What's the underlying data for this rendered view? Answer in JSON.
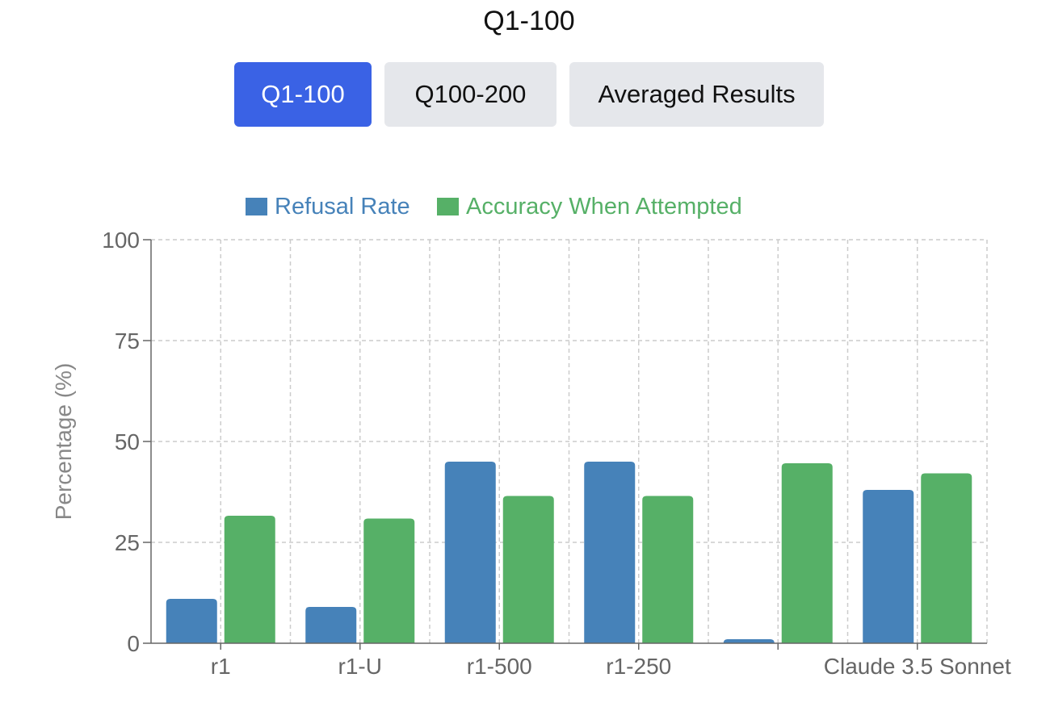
{
  "title": "Q1-100",
  "tabs": [
    {
      "label": "Q1-100",
      "active": true
    },
    {
      "label": "Q100-200",
      "active": false
    },
    {
      "label": "Averaged Results",
      "active": false
    }
  ],
  "colors": {
    "refusal": "#4682b9",
    "accuracy": "#56b067",
    "active_tab": "#3a62e5",
    "inactive_tab": "#e5e7eb"
  },
  "chart_data": {
    "type": "bar",
    "categories": [
      "r1",
      "r1-U",
      "r1-500",
      "r1-250",
      "",
      "Claude 3.5 Sonnet"
    ],
    "series": [
      {
        "name": "Refusal Rate",
        "values": [
          11,
          9,
          45,
          45,
          1,
          38
        ]
      },
      {
        "name": "Accuracy When Attempted",
        "values": [
          31.6,
          30.9,
          36.5,
          36.5,
          44.6,
          42.1
        ]
      }
    ],
    "ylabel": "Percentage (%)",
    "ylim": [
      0,
      100
    ],
    "yticks": [
      "0",
      "25",
      "50",
      "75",
      "100"
    ],
    "ytick_values": [
      0,
      25,
      50,
      75,
      100
    ],
    "grid": true,
    "legend_position": "top"
  }
}
